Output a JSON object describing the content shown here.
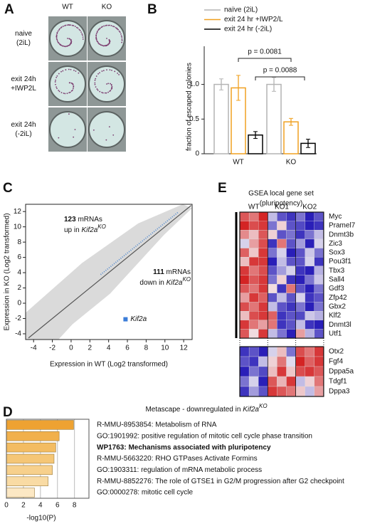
{
  "figure": {
    "panel_A": {
      "panel_label": "A",
      "columns": [
        "WT",
        "KO"
      ],
      "rows": [
        [
          "naive",
          "(2iL)"
        ],
        [
          "exit 24h",
          "+IWP2L"
        ],
        [
          "exit 24h",
          "(-2iL)"
        ]
      ]
    }
  },
  "chart_data": [
    {
      "type": "bar",
      "panel_label": "B",
      "ylabel": "fraction of escaped colonies",
      "categories": [
        "WT",
        "KO"
      ],
      "series": [
        {
          "name": "naïve (2iL)",
          "color": "#b4b4b4",
          "values": [
            1.0,
            1.0
          ],
          "errors": [
            0.08,
            0.1
          ]
        },
        {
          "name": "exit 24 hr +IWP2/L",
          "color": "#f0a020",
          "values": [
            0.95,
            0.46
          ],
          "errors": [
            0.18,
            0.05
          ]
        },
        {
          "name": "exit 24 hr (-2iL)",
          "color": "#000000",
          "values": [
            0.27,
            0.15
          ],
          "errors": [
            0.05,
            0.06
          ]
        }
      ],
      "ylim": [
        0,
        1.55
      ],
      "yticks": [
        0,
        0.5,
        {
          "value": 1,
          "label": "1.0"
        }
      ],
      "annotations": [
        "p = 0.0081",
        "p = 0.0088"
      ]
    },
    {
      "type": "scatter",
      "panel_label": "C",
      "xlabel": "Expression in WT (Log2 transformed)",
      "ylabel": "Expression in KO (Log2 transformed)",
      "series": [
        {
          "name": "Kif2a",
          "color": "#3b7dd8",
          "x": [
            5.8
          ],
          "y": [
            -2.1
          ]
        }
      ],
      "xlim": [
        -4.85,
        12.9
      ],
      "xticks": [
        -4,
        -2,
        0,
        2,
        4,
        6,
        8,
        10,
        12
      ],
      "ylim": [
        -4.75,
        12.95
      ],
      "yticks": [
        -4,
        -2,
        0,
        2,
        4,
        6,
        8,
        10,
        12
      ],
      "annotations": [
        {
          "count": "123",
          "text": "mRNAs",
          "line2": "up in",
          "gene": "Kif2a",
          "sup": "KO"
        },
        {
          "count": "111",
          "text": "mRNAs",
          "line2": "down in",
          "gene": "Kif2a",
          "sup": "KO"
        }
      ]
    },
    {
      "type": "bar",
      "orientation": "horizontal",
      "panel_label": "D",
      "title": {
        "text": "Metascape - downregulated in",
        "gene": "Kif2a",
        "sup": "KO"
      },
      "xlabel": "-log10(P)",
      "categories": [
        "R-MMU-8953854: Metabolism of RNA",
        "GO:1901992: positive regulation of mitotic cell cycle phase transition",
        "WP1763: Mechanisms associated with pluripotency",
        "R-MMU-5663220: RHO GTPases Activate Formins",
        "GO:1903311: regulation of mRNA metabolic process",
        "R-MMU-8852276: The role of GTSE1 in G2/M progression after G2 checkpoint",
        "GO:0000278: mitotic cell cycle"
      ],
      "values": [
        7.9,
        6.2,
        5.8,
        5.6,
        5.4,
        4.9,
        3.3
      ],
      "colors": [
        "#eea232",
        "#f1b04c",
        "#f3bc62",
        "#f5c676",
        "#f7d08c",
        "#f9dba4",
        "#fce8c4"
      ],
      "bold_category": 2,
      "xlim": [
        0,
        9.7
      ],
      "xticks": [
        0,
        2,
        4,
        6,
        8
      ],
      "grid": true
    },
    {
      "type": "heatmap",
      "panel_label": "E",
      "title": [
        "GSEA local gene set",
        "(pluripotency)"
      ],
      "groups": [
        "WT",
        "KO1",
        "KO2"
      ],
      "zlim": [
        -2,
        2
      ],
      "colors": [
        "#2a1fb8",
        "#f4f0f4",
        "#d42424"
      ],
      "blocks": [
        {
          "rows": [
            "Myc",
            "Pramel7",
            "Dnmt3b",
            "Zic3",
            "Sox3",
            "Pou3f1",
            "Tbx3",
            "Sall4",
            "Gdf3",
            "Zfp42",
            "Gbx2",
            "Klf2",
            "Dnmt3l",
            "Utf1"
          ],
          "values": [
            [
              1.5,
              1.2,
              2,
              -0.5,
              -1.5,
              -1.8,
              -1.2,
              -2,
              -1.5
            ],
            [
              2,
              1.6,
              1.8,
              -1.2,
              0.3,
              -1.5,
              -1.6,
              -2,
              -1.8
            ],
            [
              1,
              0.5,
              1.5,
              0.3,
              -1.5,
              -1.2,
              -1.8,
              -1.2,
              -0.5
            ],
            [
              -0.3,
              0.8,
              1.6,
              -1.8,
              1.2,
              -1.5,
              -0.8,
              -2,
              -0.3
            ],
            [
              1.4,
              0.4,
              1.8,
              -1.2,
              -0.3,
              -2,
              -1.5,
              -0.4,
              -1.2
            ],
            [
              0.5,
              1.8,
              1.8,
              -2,
              -0.5,
              -1.5,
              -1.5,
              -0.3,
              -1.8
            ],
            [
              1.8,
              1.2,
              1.6,
              -1.5,
              -0.8,
              -0.3,
              -1.8,
              -2,
              -0.6
            ],
            [
              2,
              1.5,
              1.8,
              -1.2,
              0.3,
              -1.8,
              -2,
              -1.2,
              -0.4
            ],
            [
              1.5,
              1.2,
              1.8,
              0.2,
              -1.8,
              1.2,
              -1.5,
              -2,
              -1.2
            ],
            [
              0.8,
              1.8,
              1.4,
              -1.5,
              -0.5,
              -1.5,
              -0.3,
              -1.8,
              -1.5
            ],
            [
              1.6,
              1.2,
              1.8,
              -0.5,
              -1.5,
              -1.8,
              -1.2,
              -2,
              -1.2
            ],
            [
              0.5,
              1.6,
              1.8,
              1.4,
              -1.8,
              -1.5,
              -1.6,
              -0.4,
              -0.6
            ],
            [
              1.8,
              1.2,
              0.8,
              1.2,
              -1.8,
              -1.5,
              -0.5,
              -1.8,
              -2
            ],
            [
              1.5,
              0.2,
              1.8,
              -0.5,
              -1.2,
              -2,
              0.8,
              -0.6,
              -1.5
            ]
          ]
        },
        {
          "rows": [
            "Otx2",
            "Fgf4",
            "Dppa5a",
            "Tdgf1",
            "Dppa3"
          ],
          "values": [
            [
              -1.8,
              -1.5,
              -2,
              -0.3,
              0.5,
              -1.2,
              1.6,
              1.2,
              1.8
            ],
            [
              -1.5,
              -1.8,
              -0.5,
              0.3,
              1.2,
              -0.2,
              2,
              1.4,
              1.8
            ],
            [
              -2,
              -1.2,
              -1.6,
              0.5,
              1.8,
              0.4,
              1.6,
              1.8,
              1.5
            ],
            [
              -1.2,
              -0.3,
              -2,
              1.5,
              0.6,
              1.8,
              -0.5,
              0.3,
              1.2
            ],
            [
              -1.8,
              -0.8,
              -1.5,
              1.8,
              1.5,
              1.2,
              0.4,
              -0.5,
              0.8
            ]
          ]
        }
      ]
    }
  ]
}
